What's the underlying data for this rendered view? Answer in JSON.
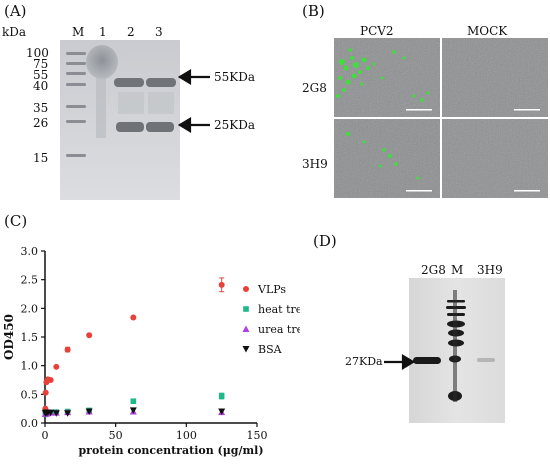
{
  "panel_a": {
    "label": "(A)",
    "unit": "kDa",
    "lanes": [
      "M",
      "1",
      "2",
      "3"
    ],
    "markers": [
      "100",
      "75",
      "55",
      "40",
      "35",
      "26",
      "15"
    ],
    "arrows": [
      "55KDa",
      "25KDa"
    ]
  },
  "panel_b": {
    "label": "(B)",
    "col_headers": [
      "PCV2",
      "MOCK"
    ],
    "row_headers": [
      "2G8",
      "3H9"
    ]
  },
  "panel_c": {
    "label": "(C)"
  },
  "panel_d": {
    "label": "(D)",
    "lanes": [
      "2G8",
      "M",
      "3H9"
    ],
    "arrow": "27KDa"
  },
  "chart_data": {
    "type": "scatter",
    "xlabel": "protein  concentration (μg/ml)",
    "ylabel": "OD450",
    "xlim": [
      0,
      150
    ],
    "ylim": [
      0,
      3.0
    ],
    "xticks": [
      "0",
      "50",
      "100",
      "150"
    ],
    "yticks": [
      "0.0",
      "0.5",
      "1.0",
      "1.5",
      "2.0",
      "2.5",
      "3.0"
    ],
    "legend_position": "right",
    "series": [
      {
        "name": "VLPs",
        "color": "#e8413a",
        "marker": "circle",
        "x": [
          0.25,
          0.5,
          1,
          2,
          4,
          8,
          16,
          31.25,
          62.5,
          125
        ],
        "y": [
          0.25,
          0.53,
          0.71,
          0.76,
          0.75,
          0.98,
          1.28,
          1.53,
          1.84,
          2.41
        ],
        "err": [
          0,
          0,
          0,
          0,
          0,
          0,
          0.04,
          0,
          0,
          0.12
        ]
      },
      {
        "name": "heat treatment",
        "color": "#1fb88a",
        "marker": "square",
        "x": [
          0.25,
          0.5,
          1,
          2,
          4,
          8,
          16,
          31.25,
          62.5,
          125
        ],
        "y": [
          0.15,
          0.16,
          0.16,
          0.17,
          0.18,
          0.19,
          0.2,
          0.22,
          0.38,
          0.47
        ],
        "err": [
          0,
          0,
          0,
          0,
          0,
          0,
          0,
          0,
          0,
          0.05
        ]
      },
      {
        "name": "urea treatment",
        "color": "#b03fe0",
        "marker": "triangle-up",
        "x": [
          0.25,
          0.5,
          1,
          2,
          4,
          8,
          16,
          31.25,
          62.5,
          125
        ],
        "y": [
          0.16,
          0.17,
          0.17,
          0.17,
          0.18,
          0.18,
          0.19,
          0.2,
          0.2,
          0.19
        ],
        "err": [
          0,
          0,
          0,
          0,
          0,
          0,
          0,
          0,
          0,
          0
        ]
      },
      {
        "name": "BSA",
        "color": "#111111",
        "marker": "triangle-down",
        "x": [
          0.25,
          0.5,
          1,
          2,
          4,
          8,
          16,
          31.25,
          62.5,
          125
        ],
        "y": [
          0.17,
          0.18,
          0.18,
          0.18,
          0.18,
          0.17,
          0.17,
          0.2,
          0.22,
          0.2
        ],
        "err": [
          0,
          0,
          0,
          0,
          0,
          0,
          0,
          0,
          0,
          0
        ]
      }
    ]
  }
}
